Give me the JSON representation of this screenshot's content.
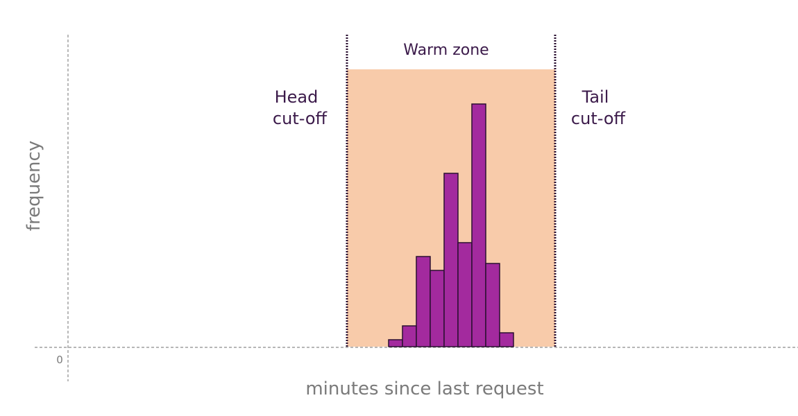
{
  "chart_data": {
    "type": "bar",
    "title": "",
    "xlabel": "minutes since last request",
    "ylabel": "frequency",
    "y_tick_labels": [
      "0"
    ],
    "grid": false,
    "values": [
      1,
      3,
      13,
      11,
      25,
      15,
      35,
      12,
      2
    ],
    "ylim": [
      0,
      40
    ],
    "annotations": {
      "zone_label": "Warm zone",
      "head_label_line1": "Head",
      "head_label_line2": "cut-off",
      "tail_label_line1": "Tail",
      "tail_label_line2": "cut-off"
    },
    "colors": {
      "bar_fill": "#a32a9e",
      "bar_stroke": "#2a0f30",
      "zone_fill": "#f8cbaa",
      "cutoff_line": "#2a0f30",
      "axis": "#8a8a8a"
    }
  }
}
